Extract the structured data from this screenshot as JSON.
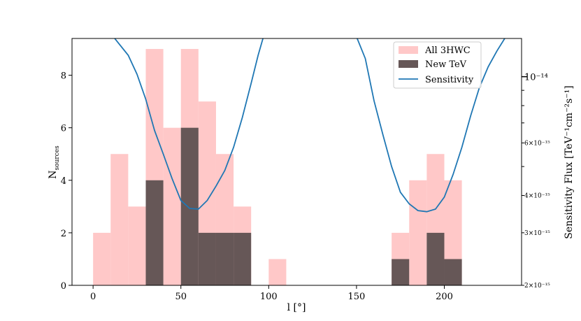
{
  "chart_data": {
    "type": "bar",
    "xlabel": "l [°]",
    "ylabel": "N",
    "ylabel_sub": "sources",
    "y2label": "Sensitivity Flux [TeV⁻¹cm⁻²s⁻¹]",
    "xlim": [
      -12,
      244
    ],
    "ylim": [
      0,
      9.4
    ],
    "y2lim_log10": [
      -14.699,
      -13.872
    ],
    "x_ticks": [
      0,
      50,
      100,
      150,
      200
    ],
    "x_tick_labels": [
      "0",
      "50",
      "100",
      "150",
      "200"
    ],
    "y_ticks": [
      0,
      2,
      4,
      6,
      8
    ],
    "y_tick_labels": [
      "0",
      "2",
      "4",
      "6",
      "8"
    ],
    "y2_major_ticks": [
      {
        "value": 1e-14,
        "label": "10⁻¹⁴"
      }
    ],
    "y2_minor_ticks": [
      {
        "value": 6e-15,
        "label": "6×10⁻¹⁵"
      },
      {
        "value": 4e-15,
        "label": "4×10⁻¹⁵"
      },
      {
        "value": 3e-15,
        "label": "3×10⁻¹⁵"
      },
      {
        "value": 2e-15,
        "label": "2×10⁻¹⁵"
      }
    ],
    "y2_unlabeled_minor_ticks": [
      9e-15,
      8e-15,
      7e-15,
      5e-15
    ],
    "bin_width": 10,
    "series": [
      {
        "name": "All 3HWC",
        "color": "#ffc8c8",
        "bins": [
          {
            "x0": 0,
            "value": 2
          },
          {
            "x0": 10,
            "value": 5
          },
          {
            "x0": 20,
            "value": 3
          },
          {
            "x0": 30,
            "value": 9
          },
          {
            "x0": 40,
            "value": 6
          },
          {
            "x0": 50,
            "value": 9
          },
          {
            "x0": 60,
            "value": 7
          },
          {
            "x0": 70,
            "value": 5
          },
          {
            "x0": 80,
            "value": 3
          },
          {
            "x0": 100,
            "value": 1
          },
          {
            "x0": 170,
            "value": 2
          },
          {
            "x0": 180,
            "value": 4
          },
          {
            "x0": 190,
            "value": 5
          },
          {
            "x0": 200,
            "value": 4
          }
        ]
      },
      {
        "name": "New TeV",
        "color": "#665757",
        "bins": [
          {
            "x0": 30,
            "value": 4
          },
          {
            "x0": 50,
            "value": 6
          },
          {
            "x0": 60,
            "value": 2
          },
          {
            "x0": 70,
            "value": 2
          },
          {
            "x0": 80,
            "value": 2
          },
          {
            "x0": 170,
            "value": 1
          },
          {
            "x0": 190,
            "value": 2
          },
          {
            "x0": 200,
            "value": 1
          }
        ]
      },
      {
        "name": "Sensitivity",
        "color": "#1f77b4",
        "type": "line",
        "segments": [
          [
            {
              "x": 12,
              "y": 1.35e-14
            },
            {
              "x": 20,
              "y": 1.18e-14
            },
            {
              "x": 25,
              "y": 1.02e-14
            },
            {
              "x": 30,
              "y": 8.4e-15
            },
            {
              "x": 35,
              "y": 6.6e-15
            },
            {
              "x": 40,
              "y": 5.5e-15
            },
            {
              "x": 45,
              "y": 4.55e-15
            },
            {
              "x": 50,
              "y": 3.85e-15
            },
            {
              "x": 55,
              "y": 3.62e-15
            },
            {
              "x": 60,
              "y": 3.6e-15
            },
            {
              "x": 65,
              "y": 3.85e-15
            },
            {
              "x": 70,
              "y": 4.3e-15
            },
            {
              "x": 75,
              "y": 4.85e-15
            },
            {
              "x": 80,
              "y": 5.8e-15
            },
            {
              "x": 85,
              "y": 7.3e-15
            },
            {
              "x": 90,
              "y": 9.5e-15
            },
            {
              "x": 94,
              "y": 1.18e-14
            },
            {
              "x": 97,
              "y": 1.36e-14
            }
          ],
          [
            {
              "x": 150,
              "y": 1.36e-14
            },
            {
              "x": 155,
              "y": 1.15e-14
            },
            {
              "x": 160,
              "y": 8.3e-15
            },
            {
              "x": 165,
              "y": 6.4e-15
            },
            {
              "x": 170,
              "y": 5e-15
            },
            {
              "x": 175,
              "y": 4.1e-15
            },
            {
              "x": 180,
              "y": 3.75e-15
            },
            {
              "x": 185,
              "y": 3.56e-15
            },
            {
              "x": 190,
              "y": 3.53e-15
            },
            {
              "x": 195,
              "y": 3.6e-15
            },
            {
              "x": 200,
              "y": 3.95e-15
            },
            {
              "x": 205,
              "y": 4.7e-15
            },
            {
              "x": 210,
              "y": 5.8e-15
            },
            {
              "x": 215,
              "y": 7.4e-15
            },
            {
              "x": 220,
              "y": 9.2e-15
            },
            {
              "x": 225,
              "y": 1.08e-14
            },
            {
              "x": 230,
              "y": 1.22e-14
            },
            {
              "x": 235,
              "y": 1.36e-14
            }
          ]
        ]
      }
    ],
    "legend": {
      "placement": "top-right",
      "entries": [
        "All 3HWC",
        "New TeV",
        "Sensitivity"
      ]
    }
  }
}
